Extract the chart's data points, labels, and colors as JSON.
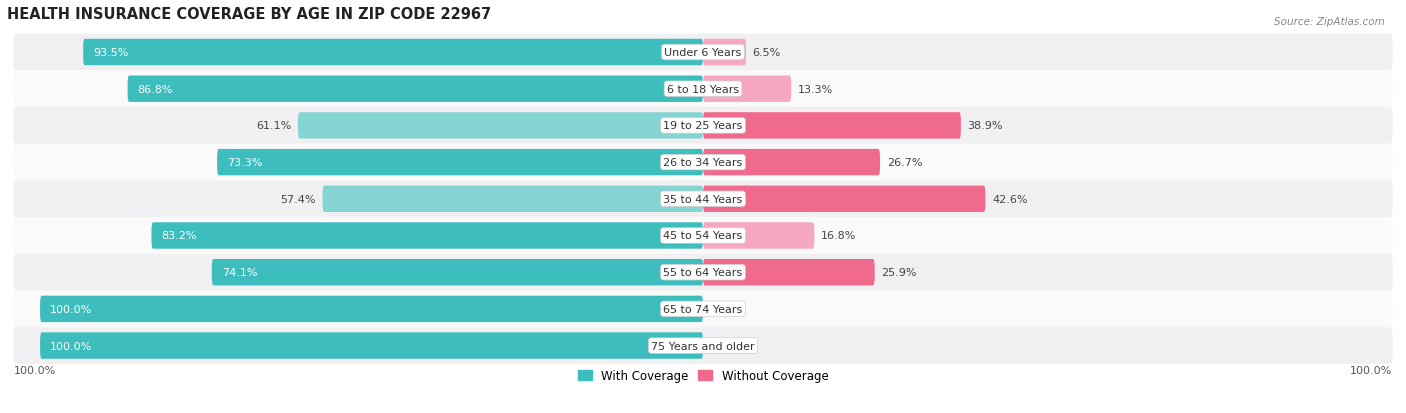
{
  "title": "HEALTH INSURANCE COVERAGE BY AGE IN ZIP CODE 22967",
  "source": "Source: ZipAtlas.com",
  "categories": [
    "Under 6 Years",
    "6 to 18 Years",
    "19 to 25 Years",
    "26 to 34 Years",
    "35 to 44 Years",
    "45 to 54 Years",
    "55 to 64 Years",
    "65 to 74 Years",
    "75 Years and older"
  ],
  "with_coverage": [
    93.5,
    86.8,
    61.1,
    73.3,
    57.4,
    83.2,
    74.1,
    100.0,
    100.0
  ],
  "without_coverage": [
    6.5,
    13.3,
    38.9,
    26.7,
    42.6,
    16.8,
    25.9,
    0.0,
    0.0
  ],
  "color_with_dark": "#3DBDBD",
  "color_with_light": "#85D4D4",
  "color_without_dark": "#F06A8D",
  "color_without_light": "#F5A8C0",
  "bg_light": "#F0F0F2",
  "bg_white": "#FAFAFA",
  "title_fontsize": 10.5,
  "label_fontsize": 8.0,
  "bar_label_fontsize": 8.0,
  "legend_fontsize": 8.5
}
